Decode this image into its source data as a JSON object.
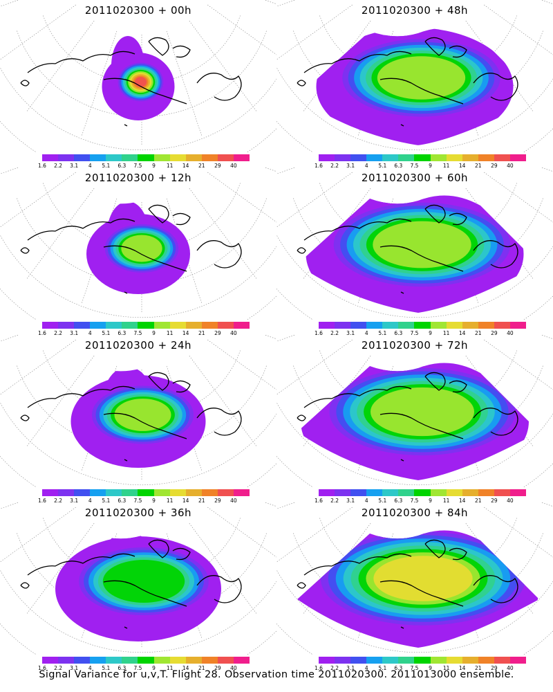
{
  "footer": "Signal Variance for u,v,T. Flight 28. Observation time 2011020300. 2011013000 ensemble.",
  "colorbar": {
    "labels": [
      "1.6",
      "2.2",
      "3.1",
      "4",
      "5.1",
      "6.3",
      "7.5",
      "9",
      "11",
      "14",
      "21",
      "29",
      "40"
    ],
    "colors": [
      "#a020f0",
      "#7d32f0",
      "#4150f0",
      "#16a0f0",
      "#2dc8c8",
      "#30d28c",
      "#00d400",
      "#a0e632",
      "#e6dc32",
      "#e6af2d",
      "#f08228",
      "#f05050",
      "#f01e8c"
    ]
  },
  "panels": [
    {
      "id": "p00",
      "title": "2011020300 + 00h",
      "spread": 0.15,
      "peak": 0.95
    },
    {
      "id": "p48",
      "title": "2011020300 + 48h",
      "spread": 0.75,
      "peak": 0.55
    },
    {
      "id": "p12",
      "title": "2011020300 + 12h",
      "spread": 0.3,
      "peak": 0.62
    },
    {
      "id": "p60",
      "title": "2011020300 + 60h",
      "spread": 0.85,
      "peak": 0.55
    },
    {
      "id": "p24",
      "title": "2011020300 + 24h",
      "spread": 0.45,
      "peak": 0.55
    },
    {
      "id": "p72",
      "title": "2011020300 + 72h",
      "spread": 0.9,
      "peak": 0.6
    },
    {
      "id": "p36",
      "title": "2011020300 + 36h",
      "spread": 0.6,
      "peak": 0.5
    },
    {
      "id": "p84",
      "title": "2011020300 + 84h",
      "spread": 1.0,
      "peak": 0.65
    }
  ]
}
